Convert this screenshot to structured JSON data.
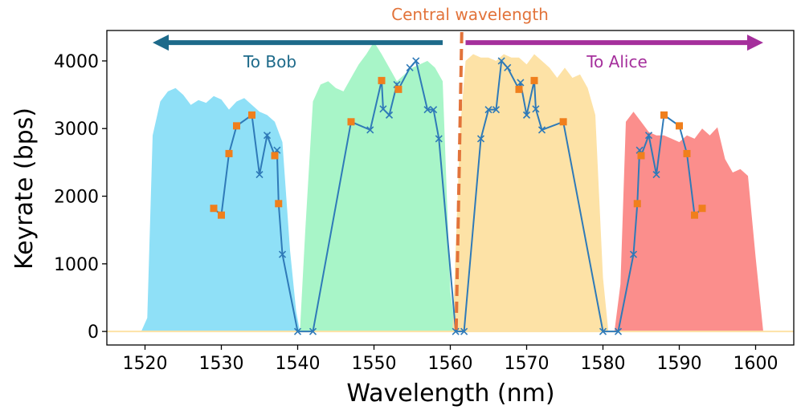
{
  "chart_data": {
    "type": "area",
    "xlabel": "Wavelength (nm)",
    "ylabel": "Keyrate (bps)",
    "xlim": [
      1515,
      1605
    ],
    "ylim": [
      -200,
      4450
    ],
    "xticks": [
      1520,
      1530,
      1540,
      1550,
      1560,
      1570,
      1580,
      1590,
      1600
    ],
    "yticks": [
      0,
      1000,
      2000,
      3000,
      4000
    ],
    "central_wavelength": 1561.5,
    "annotations": {
      "central_label": "Central wavelength",
      "to_bob_label": "To Bob",
      "to_alice_label": "To Alice",
      "to_bob_arrow": {
        "from": 1559,
        "to": 1521,
        "y": 4270
      },
      "to_alice_arrow": {
        "from": 1562,
        "to": 1601,
        "y": 4270
      }
    },
    "colors": {
      "blue_fill": "#8fe0f7",
      "green_fill": "#a8f5c8",
      "yellow_fill": "#fde2a6",
      "red_fill": "#fb8e8c",
      "line": "#2f7ab8",
      "square": "#f07f1c",
      "central": "#e2733a",
      "bob_arrow": "#1d6a8a",
      "alice_arrow": "#a52f9c"
    },
    "areas": [
      {
        "name": "Band blue",
        "color": "#8fe0f7",
        "points": [
          [
            1515,
            0
          ],
          [
            1519.5,
            0
          ],
          [
            1520.3,
            200
          ],
          [
            1521,
            2900
          ],
          [
            1522,
            3400
          ],
          [
            1523,
            3550
          ],
          [
            1524,
            3600
          ],
          [
            1525,
            3500
          ],
          [
            1526,
            3350
          ],
          [
            1527,
            3420
          ],
          [
            1528,
            3380
          ],
          [
            1529,
            3480
          ],
          [
            1530,
            3430
          ],
          [
            1531,
            3280
          ],
          [
            1532,
            3400
          ],
          [
            1533,
            3450
          ],
          [
            1534,
            3350
          ],
          [
            1535,
            3250
          ],
          [
            1536,
            3200
          ],
          [
            1537,
            3100
          ],
          [
            1538,
            2800
          ],
          [
            1539,
            1200
          ],
          [
            1539.8,
            300
          ],
          [
            1540.3,
            0
          ],
          [
            1515,
            0
          ]
        ]
      },
      {
        "name": "Band green",
        "color": "#a8f5c8",
        "points": [
          [
            1540.3,
            0
          ],
          [
            1541,
            1500
          ],
          [
            1542,
            3400
          ],
          [
            1543,
            3650
          ],
          [
            1544,
            3700
          ],
          [
            1545,
            3600
          ],
          [
            1546,
            3550
          ],
          [
            1547,
            3750
          ],
          [
            1548,
            3950
          ],
          [
            1549,
            4100
          ],
          [
            1550,
            4280
          ],
          [
            1551,
            4100
          ],
          [
            1552,
            3900
          ],
          [
            1553,
            3700
          ],
          [
            1554,
            3800
          ],
          [
            1555,
            3900
          ],
          [
            1556,
            3950
          ],
          [
            1557,
            4000
          ],
          [
            1558,
            3900
          ],
          [
            1559,
            3700
          ],
          [
            1560,
            600
          ],
          [
            1560.7,
            0
          ],
          [
            1540.3,
            0
          ]
        ]
      },
      {
        "name": "Band yellow",
        "color": "#fde2a6",
        "points": [
          [
            1560.3,
            0
          ],
          [
            1561.3,
            3000
          ],
          [
            1562,
            4000
          ],
          [
            1563,
            4100
          ],
          [
            1564,
            4050
          ],
          [
            1565,
            4050
          ],
          [
            1566,
            4000
          ],
          [
            1567,
            4100
          ],
          [
            1568,
            4050
          ],
          [
            1569,
            4050
          ],
          [
            1570,
            3950
          ],
          [
            1571,
            4100
          ],
          [
            1572,
            4000
          ],
          [
            1573,
            3900
          ],
          [
            1574,
            3750
          ],
          [
            1575,
            3900
          ],
          [
            1576,
            3750
          ],
          [
            1577,
            3800
          ],
          [
            1578,
            3600
          ],
          [
            1579,
            3200
          ],
          [
            1580,
            800
          ],
          [
            1580.7,
            0
          ],
          [
            1560.3,
            0
          ]
        ]
      },
      {
        "name": "Band red",
        "color": "#fb8e8c",
        "points": [
          [
            1581.5,
            0
          ],
          [
            1582.3,
            700
          ],
          [
            1583,
            3100
          ],
          [
            1584,
            3250
          ],
          [
            1585,
            3100
          ],
          [
            1586,
            2950
          ],
          [
            1587,
            2900
          ],
          [
            1588,
            2900
          ],
          [
            1589,
            2850
          ],
          [
            1590,
            2800
          ],
          [
            1591,
            2900
          ],
          [
            1592,
            2850
          ],
          [
            1593,
            3000
          ],
          [
            1594,
            2900
          ],
          [
            1595,
            3020
          ],
          [
            1596,
            2550
          ],
          [
            1597,
            2350
          ],
          [
            1598,
            2400
          ],
          [
            1599,
            2300
          ],
          [
            1600,
            1100
          ],
          [
            1601,
            0
          ],
          [
            1581.5,
            0
          ]
        ]
      }
    ],
    "series": [
      {
        "name": "Keyrate",
        "marker": "x",
        "color": "#2f7ab8",
        "points": [
          [
            1529,
            1820
          ],
          [
            1530,
            1720
          ],
          [
            1531,
            2630
          ],
          [
            1532,
            3040
          ],
          [
            1534,
            3200
          ],
          [
            1535,
            2320
          ],
          [
            1536,
            2900
          ],
          [
            1537,
            2600
          ],
          [
            1537.3,
            2680
          ],
          [
            1537.5,
            1890
          ],
          [
            1538,
            1140
          ],
          [
            1540,
            0
          ],
          [
            1542,
            0
          ],
          [
            1547,
            3100
          ],
          [
            1549.5,
            2980
          ],
          [
            1551,
            3710
          ],
          [
            1551.2,
            3290
          ],
          [
            1552,
            3200
          ],
          [
            1553,
            3650
          ],
          [
            1553.2,
            3580
          ],
          [
            1554.7,
            3900
          ],
          [
            1555.5,
            4000
          ],
          [
            1557,
            3280
          ],
          [
            1557.8,
            3280
          ],
          [
            1558.5,
            2850
          ],
          [
            1560.7,
            0
          ],
          [
            1561.8,
            0
          ],
          [
            1564,
            2850
          ],
          [
            1565,
            3280
          ],
          [
            1566,
            3280
          ],
          [
            1566.7,
            4000
          ],
          [
            1567.5,
            3900
          ],
          [
            1569,
            3580
          ],
          [
            1569.2,
            3680
          ],
          [
            1570,
            3200
          ],
          [
            1571,
            3710
          ],
          [
            1571.2,
            3290
          ],
          [
            1572,
            2980
          ],
          [
            1574.8,
            3100
          ],
          [
            1580,
            0
          ],
          [
            1582,
            0
          ],
          [
            1584,
            1140
          ],
          [
            1584.5,
            1890
          ],
          [
            1584.8,
            2680
          ],
          [
            1585,
            2600
          ],
          [
            1586,
            2900
          ],
          [
            1587,
            2320
          ],
          [
            1588,
            3200
          ],
          [
            1590,
            3040
          ],
          [
            1591,
            2630
          ],
          [
            1592,
            1720
          ],
          [
            1593,
            1820
          ]
        ]
      }
    ],
    "orange_markers": {
      "name": "Selected points",
      "marker": "square",
      "color": "#f07f1c",
      "points": [
        [
          1529,
          1820
        ],
        [
          1530,
          1720
        ],
        [
          1531,
          2630
        ],
        [
          1532,
          3040
        ],
        [
          1534,
          3200
        ],
        [
          1537,
          2600
        ],
        [
          1537.5,
          1890
        ],
        [
          1547,
          3100
        ],
        [
          1551,
          3710
        ],
        [
          1553.2,
          3580
        ],
        [
          1569,
          3580
        ],
        [
          1571,
          3710
        ],
        [
          1574.8,
          3100
        ],
        [
          1584.5,
          1890
        ],
        [
          1585,
          2600
        ],
        [
          1588,
          3200
        ],
        [
          1590,
          3040
        ],
        [
          1591,
          2630
        ],
        [
          1592,
          1720
        ],
        [
          1593,
          1820
        ]
      ]
    }
  }
}
